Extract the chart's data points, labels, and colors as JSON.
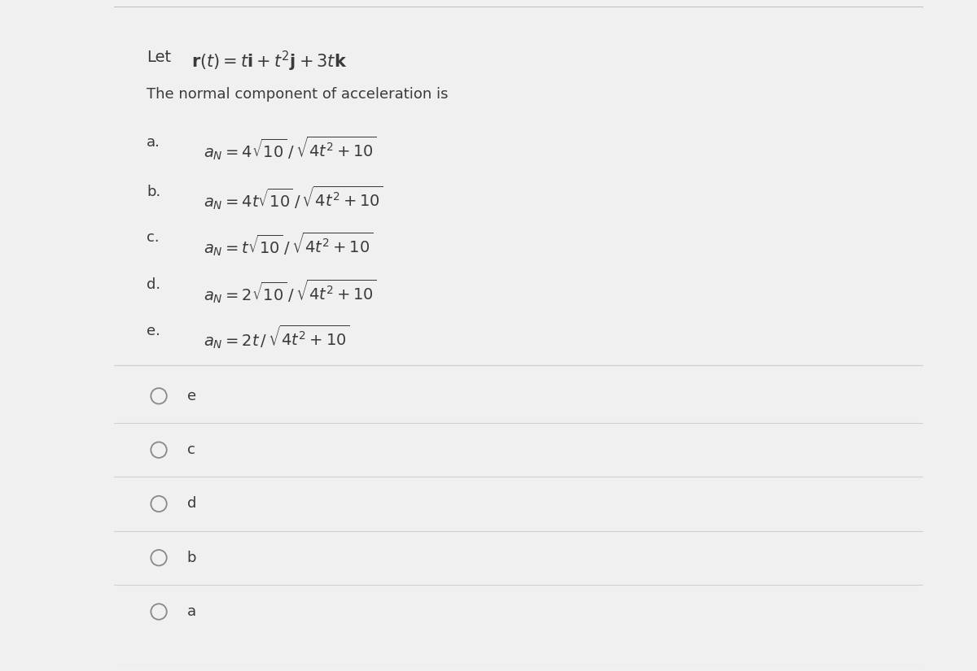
{
  "outer_bg": "#f0f0f0",
  "panel_bg": "#ffffff",
  "text_color": "#3a3a3a",
  "line_color": "#d0d0d0",
  "radio_color": "#888888",
  "title_fontsize": 14,
  "subtitle_fontsize": 13,
  "label_fontsize": 13,
  "expr_fontsize": 13,
  "radio_fontsize": 13,
  "options": [
    {
      "label": "a.",
      "expr": "$a_N = 4\\sqrt{10}\\,/\\,\\sqrt{4t^2+10}$"
    },
    {
      "label": "b.",
      "expr": "$a_N = 4t\\sqrt{10}\\,/\\,\\sqrt{4t^2+10}$"
    },
    {
      "label": "c.",
      "expr": "$a_N = t\\sqrt{10}\\,/\\,\\sqrt{4t^2+10}$"
    },
    {
      "label": "d.",
      "expr": "$a_N = 2\\sqrt{10}\\,/\\,\\sqrt{4t^2+10}$"
    },
    {
      "label": "e.",
      "expr": "$a_N = 2t\\,/\\,\\sqrt{4t^2+10}$"
    }
  ],
  "radio_options": [
    "e",
    "c",
    "d",
    "b",
    "a"
  ]
}
